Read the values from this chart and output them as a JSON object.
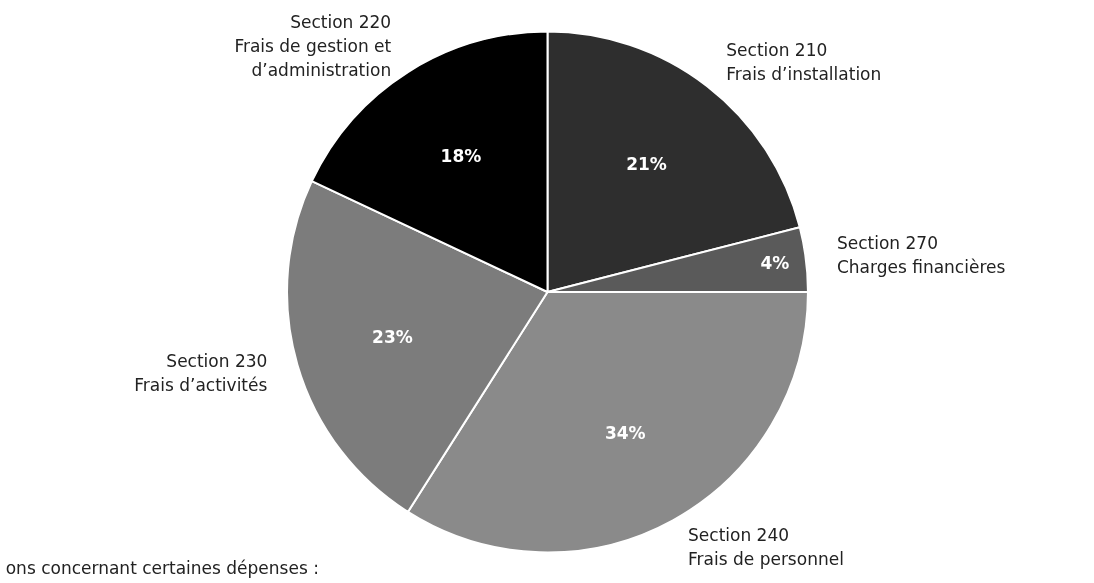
{
  "chart_data": {
    "type": "pie",
    "categories": [
      "Section 210\nFrais d’installation",
      "Section 270\nCharges financières",
      "Section 240\nFrais de personnel",
      "Section 230\nFrais d’activités",
      "Section 220\nFrais de gestion et\nd’administration"
    ],
    "values": [
      21,
      4,
      34,
      23,
      18
    ],
    "colors": [
      "#2e2e2e",
      "#5a5a5a",
      "#8a8a8a",
      "#7c7c7c",
      "#000000"
    ],
    "value_labels": [
      "21%",
      "4%",
      "34%",
      "23%",
      "18%"
    ],
    "annotations": [
      "ons concernant certaines  dépenses :"
    ]
  }
}
